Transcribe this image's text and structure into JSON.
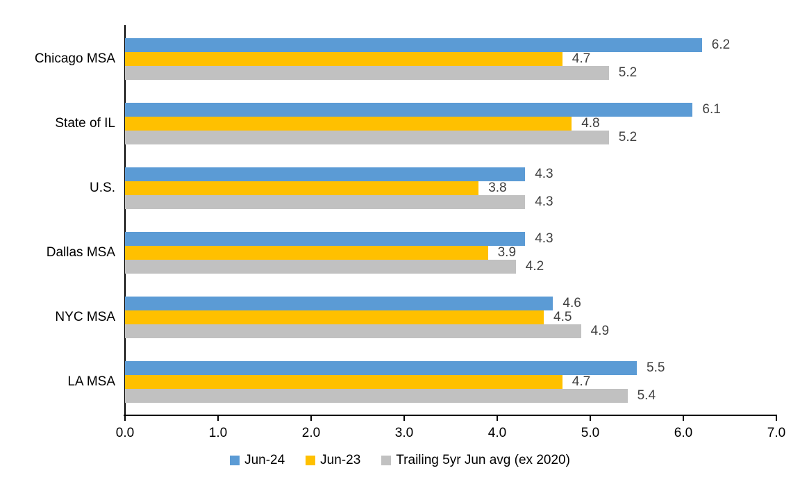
{
  "chart_data": {
    "type": "bar",
    "orientation": "horizontal",
    "title": "",
    "xlabel": "",
    "ylabel": "",
    "categories": [
      "Chicago MSA",
      "State of IL",
      "U.S.",
      "Dallas MSA",
      "NYC MSA",
      "LA MSA"
    ],
    "series": [
      {
        "name": "Jun-24",
        "color": "#5B9BD5",
        "values": [
          6.2,
          6.1,
          4.3,
          4.3,
          4.6,
          5.5
        ]
      },
      {
        "name": "Jun-23",
        "color": "#FFC000",
        "values": [
          4.7,
          4.8,
          3.8,
          3.9,
          4.5,
          4.7
        ]
      },
      {
        "name": "Trailing 5yr Jun avg (ex 2020)",
        "color": "#C1C1C1",
        "values": [
          5.2,
          5.2,
          4.3,
          4.2,
          4.9,
          5.4
        ]
      }
    ],
    "xlim": [
      0,
      7
    ],
    "x_ticks": [
      "0.0",
      "1.0",
      "2.0",
      "3.0",
      "4.0",
      "5.0",
      "6.0",
      "7.0"
    ],
    "grid": false,
    "legend_position": "bottom",
    "data_labels": true,
    "data_label_color": "#404040",
    "axis_color": "#000000",
    "background_color": "#FFFFFF"
  }
}
